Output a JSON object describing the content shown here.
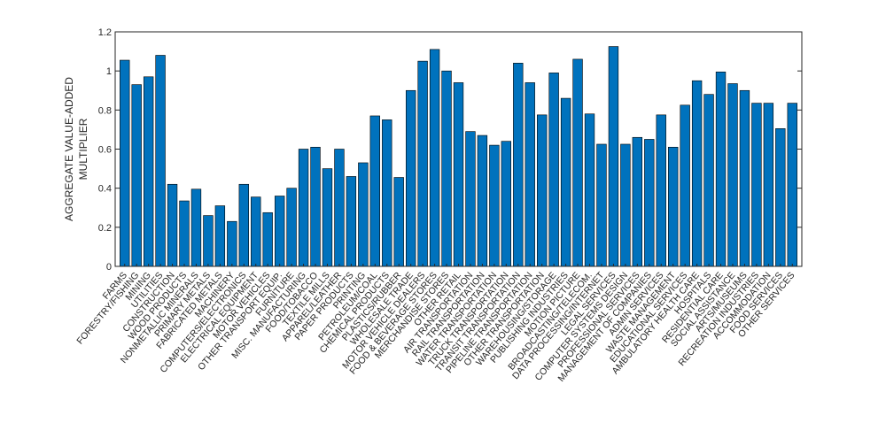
{
  "chart_data": {
    "type": "bar",
    "title": "",
    "xlabel": "",
    "ylabel": [
      "AGGREGATE VALUE-ADDED",
      "MULTIPLIER"
    ],
    "ylim": [
      0,
      1.2
    ],
    "yticks": [
      0,
      0.2,
      0.4,
      0.6,
      0.8,
      1,
      1.2
    ],
    "ytick_labels": [
      "0",
      "0.2",
      "0.4",
      "0.6",
      "0.8",
      "1",
      "1.2"
    ],
    "bar_color": "#0072BD",
    "grid": false,
    "categories": [
      "FARMS",
      "FORESTRY/FISHING",
      "MINING",
      "UTILITIES",
      "CONSTRUCTION",
      "WOOD PRODUCTS",
      "NONMETALLIC MINERALS",
      "PRIMARY METALS",
      "FABRICATED METALS",
      "MACHINERY",
      "COMPUTERS/ELECTRONICS",
      "ELECTRICAL EQUIPMENT",
      "MOTOR VEHICLES",
      "OTHER TRANSPORT EQUIP.",
      "FURNITURE",
      "MISC. MANUFACTURING",
      "FOOD/TOBACCO",
      "TEXTILE MILLS",
      "APPAREL/LEATHER",
      "PAPER PRODUCTS",
      "PRINTING",
      "PETROLEUM/COAL",
      "CHEMICAL PRODUCTS",
      "PLASTICS/RUBBER",
      "WHOLESALE TRADE",
      "MOTOR VEHICLE DEALERS",
      "FOOD & BEVERAGE STORES",
      "MERCHANDISE STORES",
      "OTHER RETAIL",
      "AIR TRANSPORTATION",
      "RAIL TRANSPORTATION",
      "WATER TRANSPORTATION",
      "TRUCK TRANSPORTATION",
      "TRANSIT TRANSPORTATION",
      "PIPELINE TRANSPORTATION",
      "OTHER TRANSPORTATION",
      "WAREHOUSING/STORAGE",
      "PUBLISHING INDUSTRIES",
      "MOTION PICTURE",
      "BROADCASTING/TELECOM.",
      "DATA PROCESSING/INTERNET",
      "LEGAL SERVICES",
      "COMPUTER SYSTEMS DESIGN",
      "PROFESSIONAL SERVICES",
      "MANAGEMENT OF COMPANIES",
      "ADMIN SERVICES",
      "WASTE MANAGEMENT",
      "EDUCATIONAL SERVICES",
      "AMBULATORY HEALTH CARE",
      "HOSPITALS",
      "RESIDENTIAL CARE",
      "SOCIAL ASSISTANCE",
      "ARTS/MUSEUMS",
      "RECREATION INDUSTRIES",
      "ACCOMMODATION",
      "FOOD SERVICES",
      "OTHER SERVICES"
    ],
    "values": [
      1.055,
      0.93,
      0.97,
      1.08,
      0.42,
      0.335,
      0.395,
      0.26,
      0.31,
      0.23,
      0.42,
      0.355,
      0.275,
      0.36,
      0.4,
      0.6,
      0.61,
      0.5,
      0.6,
      0.46,
      0.53,
      0.77,
      0.75,
      0.455,
      0.9,
      1.05,
      1.11,
      1.0,
      0.94,
      0.69,
      0.67,
      0.62,
      0.64,
      1.04,
      0.94,
      0.775,
      0.99,
      0.86,
      1.06,
      0.78,
      0.625,
      1.125,
      0.625,
      0.66,
      0.65,
      0.775,
      0.61,
      0.825,
      0.95,
      0.88,
      0.995,
      0.935,
      0.9,
      0.835,
      0.835,
      0.705,
      0.835
    ]
  }
}
